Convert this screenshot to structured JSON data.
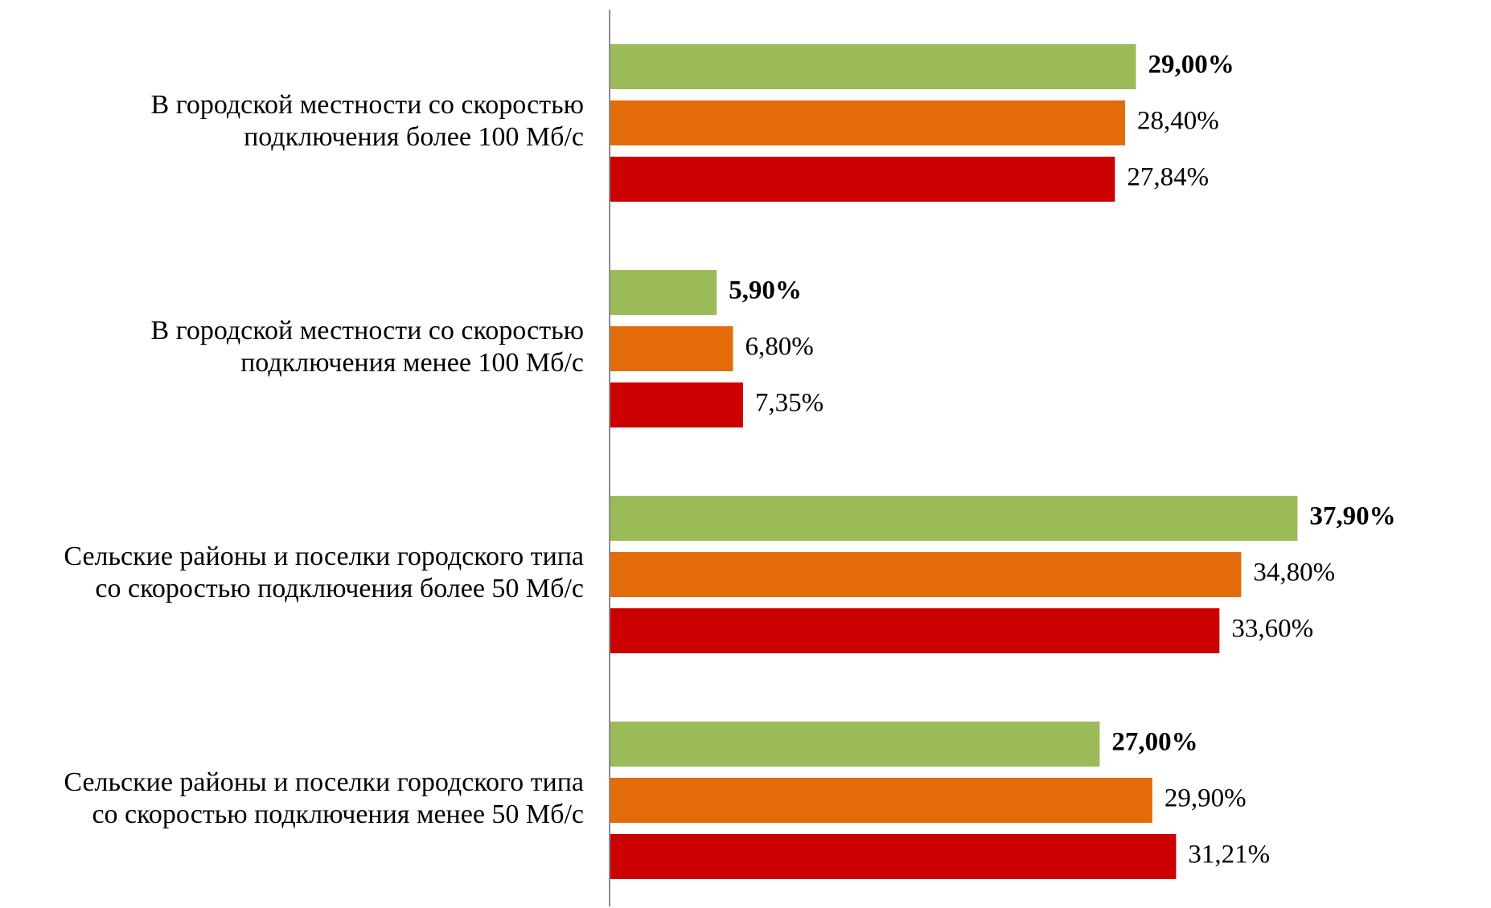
{
  "chart_data": {
    "type": "bar",
    "orientation": "horizontal",
    "title": "",
    "xlabel": "",
    "ylabel": "",
    "grid": false,
    "legend": false,
    "xlim": [
      0,
      38
    ],
    "categories": [
      "В городской местности со скоростью подключения более 100 Мб/с",
      "В городской местности со скоростью подключения менее 100 Мб/с",
      "Сельские районы и поселки городского типа со скоростью подключения более 50 Мб/с",
      "Сельские районы и поселки городского типа со скоростью подключения менее 50 Мб/с"
    ],
    "category_lines": [
      [
        "В городской местности со скоростью",
        "подключения более 100 Мб/с"
      ],
      [
        "В городской местности со скоростью",
        "подключения менее 100 Мб/с"
      ],
      [
        "Сельские районы и поселки городского типа",
        "со скоростью подключения более 50 Мб/с"
      ],
      [
        "Сельские районы и поселки городского типа",
        "со скоростью подключения менее 50 Мб/с"
      ]
    ],
    "series": [
      {
        "color": "#9BBB59",
        "bold_labels": true,
        "values": [
          29.0,
          5.9,
          37.9,
          27.0
        ],
        "labels": [
          "29,00%",
          "5,90%",
          "37,90%",
          "27,00%"
        ]
      },
      {
        "color": "#E36C0A",
        "bold_labels": false,
        "values": [
          28.4,
          6.8,
          34.8,
          29.9
        ],
        "labels": [
          "28,40%",
          "6,80%",
          "34,80%",
          "29,90%"
        ]
      },
      {
        "color": "#CC0000",
        "bold_labels": false,
        "values": [
          27.84,
          7.35,
          33.6,
          31.21
        ],
        "labels": [
          "27,84%",
          "7,35%",
          "33,60%",
          "31,21%"
        ]
      }
    ]
  }
}
